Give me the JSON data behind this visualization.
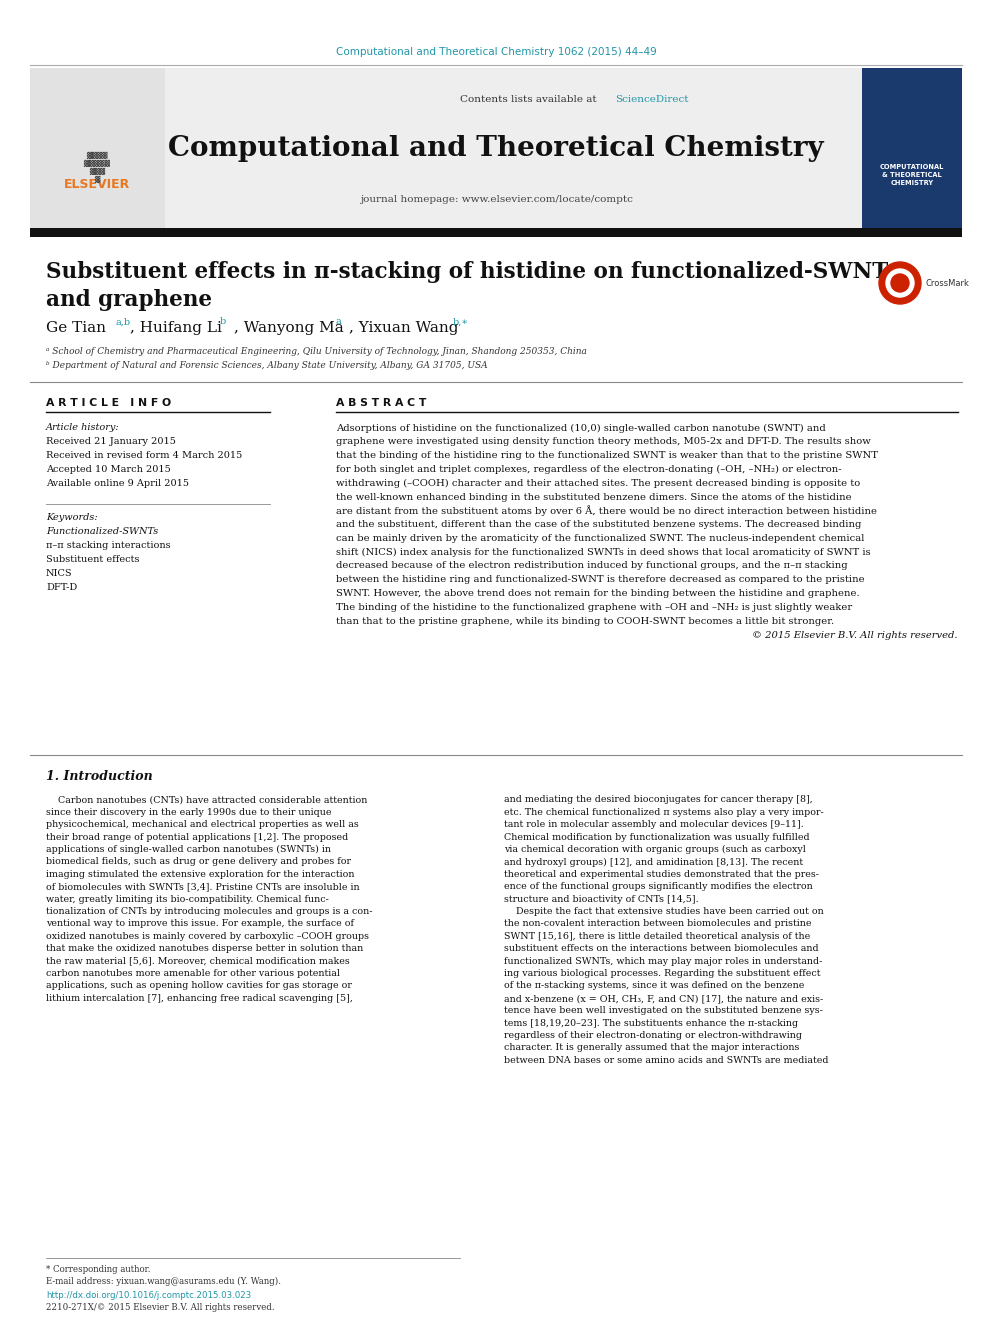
{
  "journal_ref": "Computational and Theoretical Chemistry 1062 (2015) 44–49",
  "journal_name": "Computational and Theoretical Chemistry",
  "contents_line": "Contents lists available at ",
  "sciencedirect": "ScienceDirect",
  "journal_homepage": "journal homepage: www.elsevier.com/locate/comptc",
  "paper_title_line1": "Substituent effects in π-stacking of histidine on functionalized-SWNT",
  "paper_title_line2": "and graphene",
  "author_ge": "Ge Tian",
  "author_ge_sup": "a,b",
  "author_huifang": ", Huifang Li",
  "author_huifang_sup": "b",
  "author_wanyong": ", Wanyong Ma",
  "author_wanyong_sup": "a",
  "author_yixuan": ", Yixuan Wang",
  "author_yixuan_sup": "b,∗",
  "affiliation_a": "ᵃ School of Chemistry and Pharmaceutical Engineering, Qilu University of Technology, Jinan, Shandong 250353, China",
  "affiliation_b": "ᵇ Department of Natural and Forensic Sciences, Albany State University, Albany, GA 31705, USA",
  "section_article_info": "A R T I C L E   I N F O",
  "section_abstract": "A B S T R A C T",
  "article_history_label": "Article history:",
  "received": "Received 21 January 2015",
  "received_revised": "Received in revised form 4 March 2015",
  "accepted": "Accepted 10 March 2015",
  "available_online": "Available online 9 April 2015",
  "keywords_label": "Keywords:",
  "keyword1": "Functionalized-SWNTs",
  "keyword2": "π–π stacking interactions",
  "keyword3": "Substituent effects",
  "keyword4": "NICS",
  "keyword5": "DFT-D",
  "abstract_lines": [
    "Adsorptions of histidine on the functionalized (10,0) single-walled carbon nanotube (SWNT) and",
    "graphene were investigated using density function theory methods, M05-2x and DFT-D. The results show",
    "that the binding of the histidine ring to the functionalized SWNT is weaker than that to the pristine SWNT",
    "for both singlet and triplet complexes, regardless of the electron-donating (–OH, –NH₂) or electron-",
    "withdrawing (–COOH) character and their attached sites. The present decreased binding is opposite to",
    "the well-known enhanced binding in the substituted benzene dimers. Since the atoms of the histidine",
    "are distant from the substituent atoms by over 6 Å, there would be no direct interaction between histidine",
    "and the substituent, different than the case of the substituted benzene systems. The decreased binding",
    "can be mainly driven by the aromaticity of the functionalized SWNT. The nucleus-independent chemical",
    "shift (NICS) index analysis for the functionalized SWNTs in deed shows that local aromaticity of SWNT is",
    "decreased because of the electron redistribution induced by functional groups, and the π–π stacking",
    "between the histidine ring and functionalized-SWNT is therefore decreased as compared to the pristine",
    "SWNT. However, the above trend does not remain for the binding between the histidine and graphene.",
    "The binding of the histidine to the functionalized graphene with –OH and –NH₂ is just slightly weaker",
    "than that to the pristine graphene, while its binding to COOH-SWNT becomes a little bit stronger.",
    "© 2015 Elsevier B.V. All rights reserved."
  ],
  "section1_title": "1. Introduction",
  "intro_col1_lines": [
    "    Carbon nanotubes (CNTs) have attracted considerable attention",
    "since their discovery in the early 1990s due to their unique",
    "physicochemical, mechanical and electrical properties as well as",
    "their broad range of potential applications [1,2]. The proposed",
    "applications of single-walled carbon nanotubes (SWNTs) in",
    "biomedical fields, such as drug or gene delivery and probes for",
    "imaging stimulated the extensive exploration for the interaction",
    "of biomolecules with SWNTs [3,4]. Pristine CNTs are insoluble in",
    "water, greatly limiting its bio-compatibility. Chemical func-",
    "tionalization of CNTs by introducing molecules and groups is a con-",
    "ventional way to improve this issue. For example, the surface of",
    "oxidized nanotubes is mainly covered by carboxylic –COOH groups",
    "that make the oxidized nanotubes disperse better in solution than",
    "the raw material [5,6]. Moreover, chemical modification makes",
    "carbon nanotubes more amenable for other various potential",
    "applications, such as opening hollow cavities for gas storage or",
    "lithium intercalation [7], enhancing free radical scavenging [5],"
  ],
  "intro_col2_lines": [
    "and mediating the desired bioconjugates for cancer therapy [8],",
    "etc. The chemical functionalized π systems also play a very impor-",
    "tant role in molecular assembly and molecular devices [9–11].",
    "Chemical modification by functionalization was usually fulfilled",
    "via chemical decoration with organic groups (such as carboxyl",
    "and hydroxyl groups) [12], and amidination [8,13]. The recent",
    "theoretical and experimental studies demonstrated that the pres-",
    "ence of the functional groups significantly modifies the electron",
    "structure and bioactivity of CNTs [14,5].",
    "    Despite the fact that extensive studies have been carried out on",
    "the non-covalent interaction between biomolecules and pristine",
    "SWNT [15,16], there is little detailed theoretical analysis of the",
    "substituent effects on the interactions between biomolecules and",
    "functionalized SWNTs, which may play major roles in understand-",
    "ing various biological processes. Regarding the substituent effect",
    "of the π-stacking systems, since it was defined on the benzene",
    "and x-benzene (x = OH, CH₃, F, and CN) [17], the nature and exis-",
    "tence have been well investigated on the substituted benzene sys-",
    "tems [18,19,20–23]. The substituents enhance the π-stacking",
    "regardless of their electron-donating or electron-withdrawing",
    "character. It is generally assumed that the major interactions",
    "between DNA bases or some amino acids and SWNTs are mediated"
  ],
  "footer_corresponding": "* Corresponding author.",
  "footer_email": "E-mail address: yixuan.wang@asurams.edu (Y. Wang).",
  "footer_doi": "http://dx.doi.org/10.1016/j.comptc.2015.03.023",
  "footer_issn": "2210-271X/© 2015 Elsevier B.V. All rights reserved.",
  "bg_color": "#ffffff",
  "elsevier_orange": "#e87722",
  "link_blue": "#2196a8",
  "cover_blue": "#1a3a6e"
}
